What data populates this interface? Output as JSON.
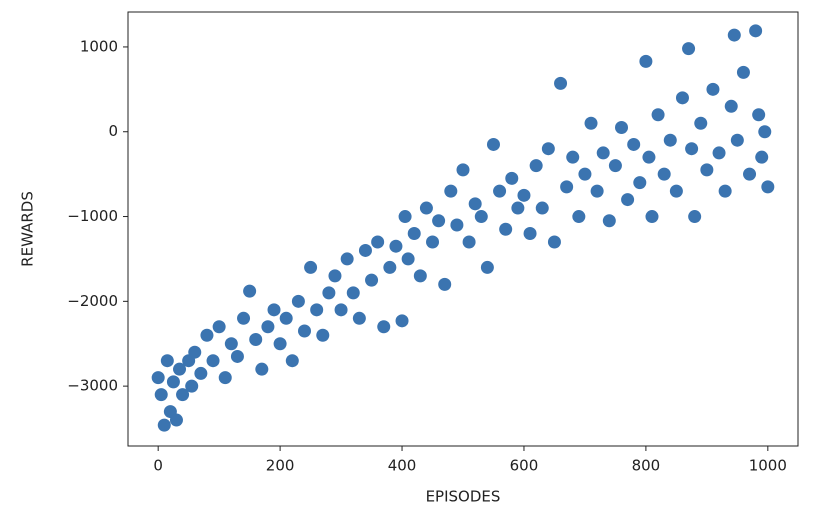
{
  "chart_data": {
    "type": "scatter",
    "x_label": "EPISODES",
    "y_label": "REWARDS",
    "color": "#3b74b0",
    "xlim": [
      -49.5,
      1049.5
    ],
    "ylim": [
      -3706,
      1412
    ],
    "xticks": [
      0,
      200,
      400,
      600,
      800,
      1000
    ],
    "yticks": [
      {
        "value": -3000,
        "label": "−3000"
      },
      {
        "value": -2000,
        "label": "−2000"
      },
      {
        "value": -1000,
        "label": "−1000"
      },
      0,
      1000
    ],
    "x": [
      0,
      5,
      10,
      15,
      20,
      25,
      30,
      35,
      40,
      50,
      55,
      60,
      70,
      80,
      90,
      100,
      110,
      120,
      130,
      140,
      150,
      160,
      170,
      180,
      190,
      200,
      210,
      220,
      230,
      240,
      250,
      260,
      270,
      280,
      290,
      300,
      310,
      320,
      330,
      340,
      350,
      360,
      370,
      380,
      390,
      400,
      405,
      410,
      420,
      430,
      440,
      450,
      460,
      470,
      480,
      490,
      500,
      510,
      520,
      530,
      540,
      550,
      560,
      570,
      580,
      590,
      600,
      610,
      620,
      630,
      640,
      650,
      660,
      670,
      680,
      690,
      700,
      710,
      720,
      730,
      740,
      750,
      760,
      770,
      780,
      790,
      800,
      805,
      810,
      820,
      830,
      840,
      850,
      860,
      870,
      875,
      880,
      890,
      900,
      910,
      920,
      930,
      940,
      945,
      950,
      960,
      970,
      980,
      985,
      990,
      995,
      1000
    ],
    "values": [
      -2900,
      -3100,
      -3460,
      -2700,
      -3300,
      -2950,
      -3400,
      -2800,
      -3100,
      -2700,
      -3000,
      -2600,
      -2850,
      -2400,
      -2700,
      -2300,
      -2900,
      -2500,
      -2650,
      -2200,
      -1880,
      -2450,
      -2800,
      -2300,
      -2100,
      -2500,
      -2200,
      -2700,
      -2000,
      -2350,
      -1600,
      -2100,
      -2400,
      -1900,
      -1700,
      -2100,
      -1500,
      -1900,
      -2200,
      -1400,
      -1750,
      -1300,
      -2300,
      -1600,
      -1350,
      -2230,
      -1000,
      -1500,
      -1200,
      -1700,
      -900,
      -1300,
      -1050,
      -1800,
      -700,
      -1100,
      -450,
      -1300,
      -850,
      -1000,
      -1600,
      -150,
      -700,
      -1150,
      -550,
      -900,
      -750,
      -1200,
      -400,
      -900,
      -200,
      -1300,
      570,
      -650,
      -300,
      -1000,
      -500,
      100,
      -700,
      -250,
      -1050,
      -400,
      50,
      -800,
      -150,
      -600,
      830,
      -300,
      -1000,
      200,
      -500,
      -100,
      -700,
      400,
      980,
      -200,
      -1000,
      100,
      -450,
      500,
      -250,
      -700,
      300,
      1140,
      -100,
      700,
      -500,
      1190,
      200,
      -300,
      0,
      -650
    ]
  }
}
